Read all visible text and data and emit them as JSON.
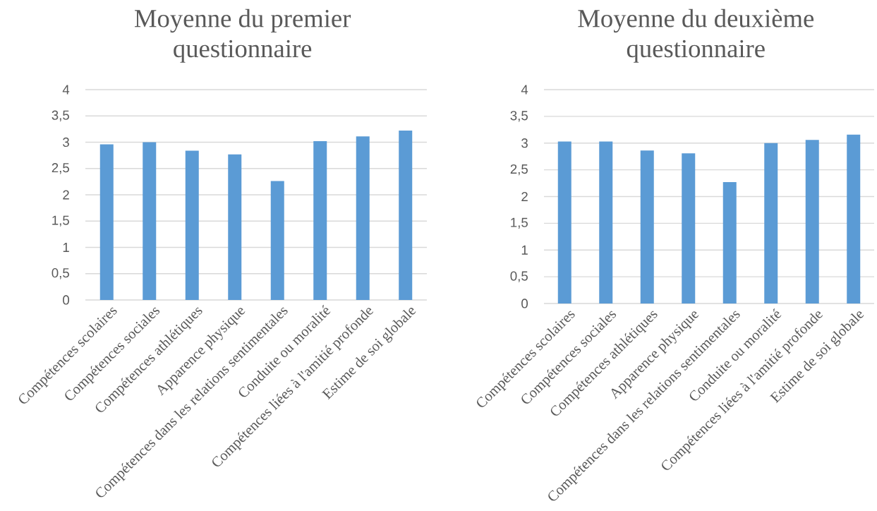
{
  "chart_data": [
    {
      "type": "bar",
      "title": "Moyenne du premier questionnaire",
      "categories": [
        "Compétences scolaires",
        "Compétences sociales",
        "Compétences athlétiques",
        "Apparence physique",
        "Compétences dans les relations sentimentales",
        "Conduite ou moralité",
        "Compétences liées à l'amitié profonde",
        "Estime de soi globale"
      ],
      "values": [
        2.96,
        3.0,
        2.84,
        2.77,
        2.26,
        3.02,
        3.11,
        3.22
      ],
      "color": "#5b9bd5",
      "ylim": [
        0,
        4
      ],
      "yticks": [
        0,
        {
          "value": 0.5,
          "label": "0,5"
        },
        1,
        {
          "value": 1.5,
          "label": "1,5"
        },
        2,
        {
          "value": 2.5,
          "label": "2,5"
        },
        3,
        {
          "value": 3.5,
          "label": "3,5"
        },
        4
      ],
      "grid": "y"
    },
    {
      "type": "bar",
      "title": "Moyenne du deuxième questionnaire",
      "categories": [
        "Compétences scolaires",
        "Compétences sociales",
        "Compétences athlétiques",
        "Apparence physique",
        "Compétences dans les relations sentimentales",
        "Conduite ou moralité",
        "Compétences liées à l'amitié profonde",
        "Estime de soi globale"
      ],
      "values": [
        3.03,
        3.03,
        2.86,
        2.81,
        2.27,
        3.0,
        3.06,
        3.16
      ],
      "color": "#5b9bd5",
      "ylim": [
        0,
        4
      ],
      "yticks": [
        0,
        {
          "value": 0.5,
          "label": "0,5"
        },
        1,
        {
          "value": 1.5,
          "label": "1,5"
        },
        2,
        {
          "value": 2.5,
          "label": "2,5"
        },
        3,
        {
          "value": 3.5,
          "label": "3,5"
        },
        4
      ],
      "grid": "y"
    }
  ]
}
